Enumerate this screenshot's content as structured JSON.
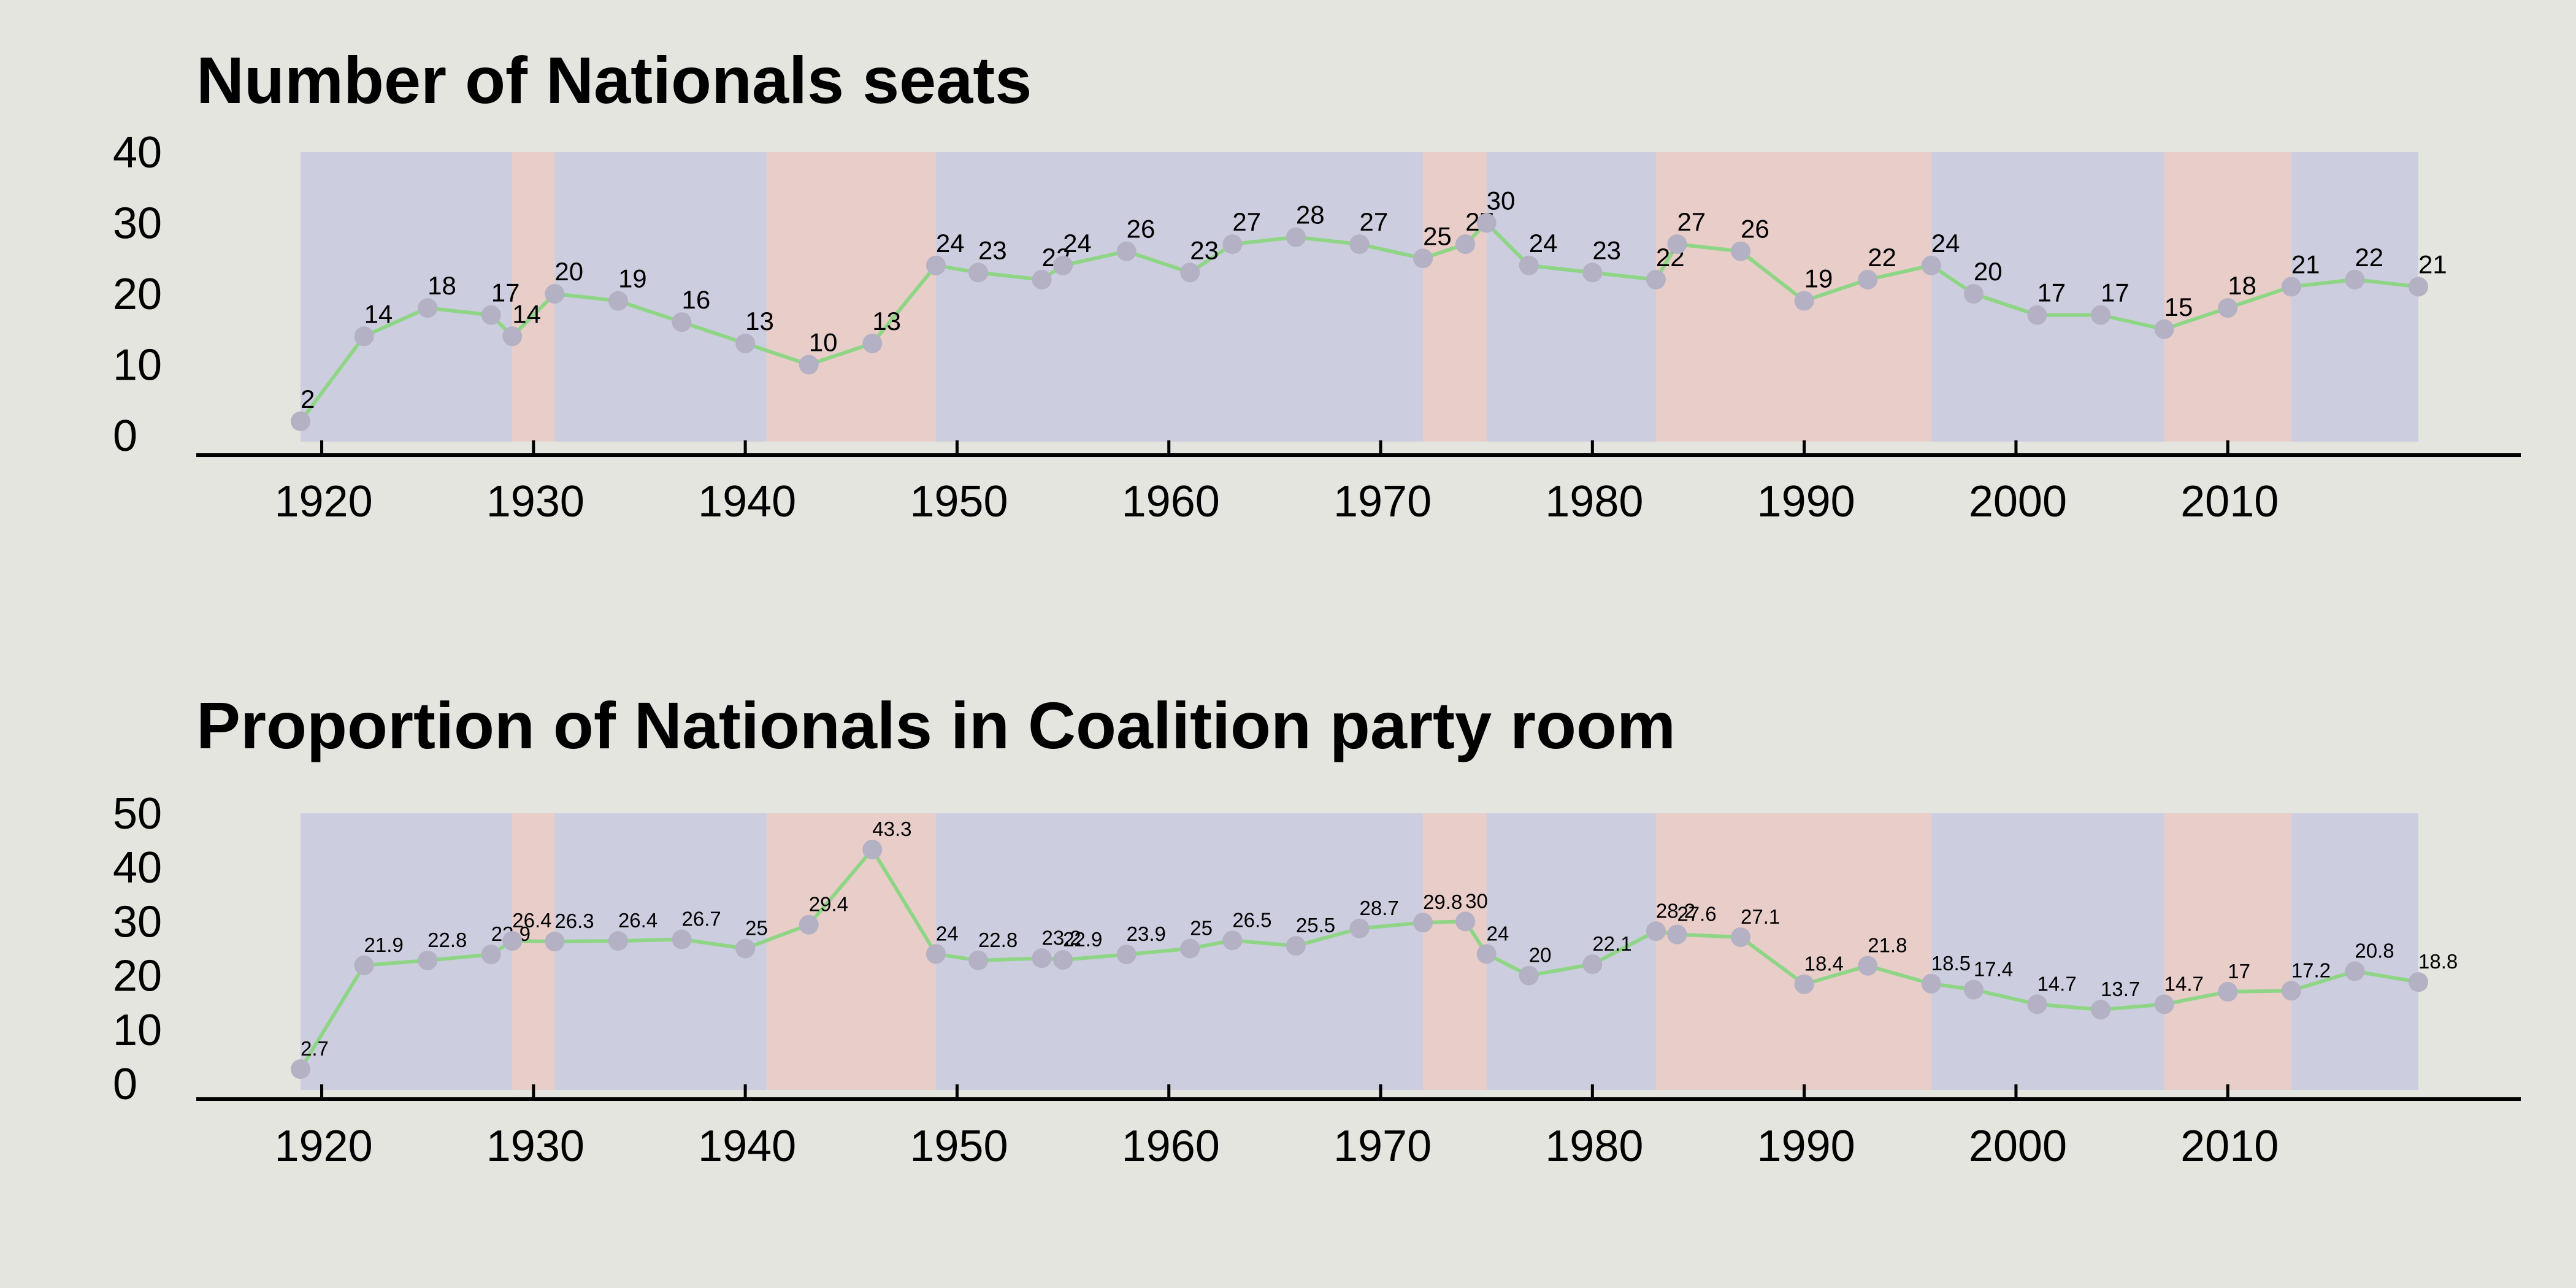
{
  "chart_data": [
    {
      "type": "line",
      "title": "Number of Nationals seats",
      "xlabel": "",
      "ylabel": "",
      "xlim": [
        1914,
        2025
      ],
      "ylim": [
        0,
        40
      ],
      "yticks": [
        0,
        10,
        20,
        30,
        40
      ],
      "xticks": [
        1920,
        1930,
        1940,
        1950,
        1960,
        1970,
        1980,
        1990,
        2000,
        2010
      ],
      "grid": false,
      "legend": "none",
      "line_color": "#8ed685",
      "marker_color": "#b3b1c3",
      "x": [
        1919,
        1922,
        1925,
        1928,
        1929,
        1931,
        1934,
        1937,
        1940,
        1943,
        1946,
        1949,
        1951,
        1954,
        1955,
        1958,
        1961,
        1963,
        1966,
        1969,
        1972,
        1974,
        1975,
        1977,
        1980,
        1983,
        1984,
        1987,
        1990,
        1993,
        1996,
        1998,
        2001,
        2004,
        2007,
        2010,
        2013,
        2016,
        2019
      ],
      "values": [
        2,
        14,
        18,
        17,
        14,
        20,
        19,
        16,
        13,
        10,
        13,
        24,
        23,
        22,
        24,
        26,
        23,
        27,
        28,
        27,
        25,
        27,
        30,
        24,
        23,
        22,
        27,
        26,
        19,
        22,
        24,
        20,
        17,
        17,
        15,
        18,
        21,
        22,
        21
      ],
      "labels": [
        "2",
        "14",
        "18",
        "17",
        "14",
        "20",
        "19",
        "16",
        "13",
        "10",
        "13",
        "24",
        "23",
        "22",
        "24",
        "26",
        "23",
        "27",
        "28",
        "27",
        "25",
        "27",
        "30",
        "24",
        "23",
        "22",
        "27",
        "26",
        "19",
        "22",
        "24",
        "20",
        "17",
        "17",
        "15",
        "18",
        "21",
        "22",
        "21"
      ]
    },
    {
      "type": "line",
      "title": "Proportion of Nationals in Coalition party room",
      "xlabel": "",
      "ylabel": "",
      "xlim": [
        1914,
        2025
      ],
      "ylim": [
        0,
        50
      ],
      "yticks": [
        0,
        10,
        20,
        30,
        40,
        50
      ],
      "xticks": [
        1920,
        1930,
        1940,
        1950,
        1960,
        1970,
        1980,
        1990,
        2000,
        2010
      ],
      "grid": false,
      "legend": "none",
      "line_color": "#8ed685",
      "marker_color": "#b3b1c3",
      "x": [
        1919,
        1922,
        1925,
        1928,
        1929,
        1931,
        1934,
        1937,
        1940,
        1943,
        1946,
        1949,
        1951,
        1954,
        1955,
        1958,
        1961,
        1963,
        1966,
        1969,
        1972,
        1974,
        1975,
        1977,
        1980,
        1983,
        1984,
        1987,
        1990,
        1993,
        1996,
        1998,
        2001,
        2004,
        2007,
        2010,
        2013,
        2016,
        2019
      ],
      "values": [
        2.7,
        21.9,
        22.8,
        23.9,
        26.4,
        26.3,
        26.4,
        26.7,
        25,
        29.4,
        43.3,
        24,
        22.8,
        23.2,
        22.9,
        23.9,
        25,
        26.5,
        25.5,
        28.7,
        29.8,
        30,
        24,
        20,
        22.1,
        28.2,
        27.6,
        27.1,
        18.4,
        21.8,
        18.5,
        17.4,
        14.7,
        13.7,
        14.7,
        17,
        17.2,
        20.8,
        18.8
      ],
      "labels": [
        "2.7",
        "21.9",
        "22.8",
        "23.9",
        "26.4",
        "26.3",
        "26.4",
        "26.7",
        "25",
        "29.4",
        "43.3",
        "24",
        "22.8",
        "23.2",
        "22.9",
        "23.9",
        "25",
        "26.5",
        "25.5",
        "28.7",
        "29.8",
        "30",
        "24",
        "20",
        "22.1",
        "28.2",
        "27.6",
        "27.1",
        "18.4",
        "21.8",
        "18.5",
        "17.4",
        "14.7",
        "13.7",
        "14.7",
        "17",
        "17.2",
        "20.8",
        "18.8"
      ]
    }
  ],
  "government_periods": [
    {
      "start": 1919,
      "end": 1929,
      "party": "coalition"
    },
    {
      "start": 1929,
      "end": 1931,
      "party": "labor"
    },
    {
      "start": 1931,
      "end": 1941,
      "party": "coalition"
    },
    {
      "start": 1941,
      "end": 1949,
      "party": "labor"
    },
    {
      "start": 1949,
      "end": 1972,
      "party": "coalition"
    },
    {
      "start": 1972,
      "end": 1975,
      "party": "labor"
    },
    {
      "start": 1975,
      "end": 1983,
      "party": "coalition"
    },
    {
      "start": 1983,
      "end": 1996,
      "party": "labor"
    },
    {
      "start": 1996,
      "end": 2007,
      "party": "coalition"
    },
    {
      "start": 2007,
      "end": 2013,
      "party": "labor"
    },
    {
      "start": 2013,
      "end": 2019,
      "party": "coalition"
    }
  ],
  "colors": {
    "background": "#e5e5df",
    "coalition_band": "#cdcde0",
    "labor_band": "#e8cdc9",
    "line": "#8ed685",
    "marker": "#b3b1c3",
    "axis": "#000000"
  }
}
